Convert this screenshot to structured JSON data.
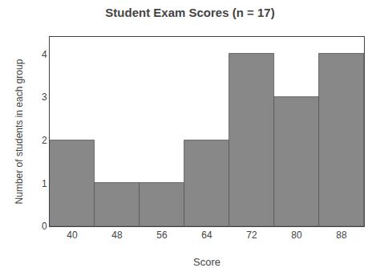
{
  "chart_data": {
    "type": "bar",
    "title": "Student Exam Scores (n = 17)",
    "x": [
      40,
      48,
      56,
      64,
      72,
      80,
      88
    ],
    "values": [
      2,
      1,
      1,
      2,
      4,
      3,
      4
    ],
    "color": "#888888",
    "xlabel": "Score",
    "ylabel": "Number of students in each group",
    "xlim": [
      36,
      92
    ],
    "xticks": [
      40,
      48,
      56,
      64,
      72,
      80,
      88
    ],
    "ylim": [
      0,
      4.4
    ],
    "yticks": [
      0,
      1,
      2,
      3,
      4
    ],
    "grid": false
  }
}
